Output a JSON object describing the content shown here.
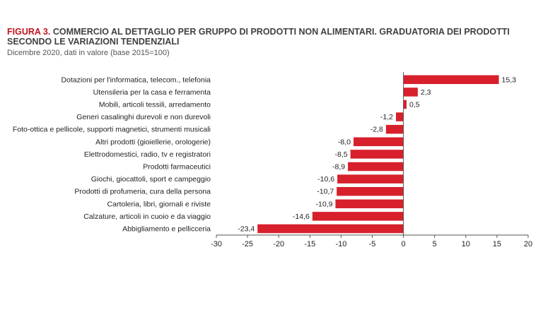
{
  "figure": {
    "label": "FIGURA 3.",
    "title_text": " COMMERCIO AL DETTAGLIO PER GRUPPO DI PRODOTTI NON ALIMENTARI. GRADUATORIA DEI PRODOTTI SECONDO LE VARIAZIONI TENDENZIALI",
    "subtitle": "Dicembre 2020, dati in valore (base 2015=100)"
  },
  "chart_data": {
    "type": "bar",
    "orientation": "horizontal",
    "title": "COMMERCIO AL DETTAGLIO PER GRUPPO DI PRODOTTI NON ALIMENTARI. GRADUATORIA DEI PRODOTTI SECONDO LE VARIAZIONI TENDENZIALI",
    "subtitle": "Dicembre 2020, dati in valore (base 2015=100)",
    "categories": [
      "Dotazioni per l'informatica, telecom., telefonia",
      "Utensileria per la casa e ferramenta",
      "Mobili, articoli tessili, arredamento",
      "Generi casalinghi durevoli e non durevoli",
      "Foto-ottica e pellicole, supporti magnetici, strumenti  musicali",
      "Altri prodotti (gioiellerie, orologerie)",
      "Elettrodomestici, radio, tv e registratori",
      "Prodotti farmaceutici",
      "Giochi, giocattoli, sport e campeggio",
      "Prodotti di profumeria, cura della persona",
      "Cartoleria, libri, giornali e riviste",
      "Calzature, articoli in cuoio e da viaggio",
      "Abbigliamento e pellicceria"
    ],
    "values": [
      15.3,
      2.3,
      0.5,
      -1.2,
      -2.8,
      -8.0,
      -8.5,
      -8.9,
      -10.6,
      -10.7,
      -10.9,
      -14.6,
      -23.4
    ],
    "value_labels": [
      "15,3",
      "2,3",
      "0,5",
      "-1,2",
      "-2,8",
      "-8,0",
      "-8,5",
      "-8,9",
      "-10,6",
      "-10,7",
      "-10,9",
      "-14,6",
      "-23,4"
    ],
    "xlim": [
      -30,
      20
    ],
    "xticks": [
      -30,
      -25,
      -20,
      -15,
      -10,
      -5,
      0,
      5,
      10,
      15,
      20
    ],
    "xtick_labels": [
      "-30",
      "-25",
      "-20",
      "-15",
      "-10",
      "-5",
      "0",
      "5",
      "10",
      "15",
      "20"
    ],
    "xlabel": "",
    "ylabel": "",
    "grid": false,
    "bar_color": "#d7202c"
  }
}
